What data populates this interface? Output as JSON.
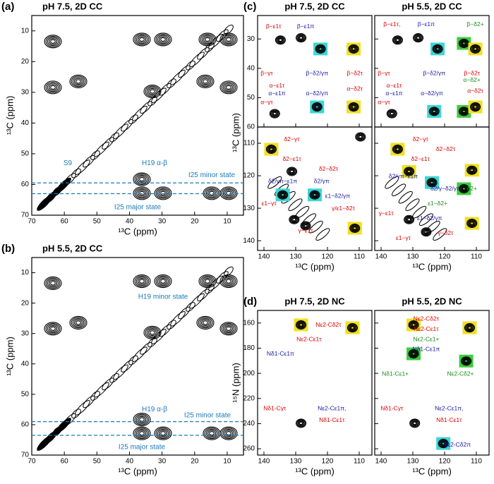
{
  "chart_data": [
    {
      "type": "contour",
      "panel": "(a)",
      "title": "pH 7.5, 2D CC",
      "xlabel": "¹³C (ppm)",
      "ylabel": "¹³C (ppm)",
      "xlim": [
        70,
        5
      ],
      "ylim": [
        70,
        5
      ],
      "xticks": [
        70,
        60,
        50,
        40,
        30,
        20,
        10
      ],
      "yticks": [
        10,
        20,
        30,
        40,
        50,
        60,
        70
      ],
      "xtick_labels": true,
      "ytick_labels": true,
      "hlines": [
        59.5,
        63
      ],
      "hline_color": "#1a7ab8",
      "annotations": [
        {
          "text": "S9",
          "color": "#1a7ab8"
        },
        {
          "text": "H19 α-β",
          "color": "#1a7ab8"
        },
        {
          "text": "I25 minor state",
          "color": "#1a7ab8"
        },
        {
          "text": "I25 major state",
          "color": "#1a7ab8"
        }
      ]
    },
    {
      "type": "contour",
      "panel": "(b)",
      "title": "pH 5.5, 2D CC",
      "xlabel": "¹³C (ppm)",
      "ylabel": "¹³C (ppm)",
      "xlim": [
        70,
        5
      ],
      "ylim": [
        70,
        5
      ],
      "xticks": [
        70,
        60,
        50,
        40,
        30,
        20,
        10
      ],
      "yticks": [
        10,
        20,
        30,
        40,
        50,
        60,
        70
      ],
      "xtick_labels": true,
      "ytick_labels": true,
      "hlines": [
        59,
        63.5
      ],
      "hline_color": "#1a7ab8",
      "annotations": [
        {
          "text": "H19 minor state",
          "color": "#1a7ab8"
        },
        {
          "text": "H19 α-β",
          "color": "#1a7ab8"
        },
        {
          "text": "I25 minor state",
          "color": "#1a7ab8"
        },
        {
          "text": "I25 major state",
          "color": "#1a7ab8"
        }
      ]
    },
    {
      "type": "contour",
      "panel": "(c)",
      "title": "pH 7.5, 2D CC",
      "ylabel": "¹³C (ppm)",
      "xlim": [
        142,
        106
      ],
      "ylim": [
        60,
        22
      ],
      "xticks": [
        140,
        130,
        120,
        110
      ],
      "yticks": [
        30,
        40,
        50,
        60
      ],
      "xtick_labels": false,
      "ytick_labels": true,
      "annotations": [
        {
          "text": "β−ε1τ",
          "color": "#d00"
        },
        {
          "text": "β−ε1π",
          "color": "#1a1aa0"
        },
        {
          "text": "β−γτ",
          "color": "#d00"
        },
        {
          "text": "β−δ2/γπ",
          "color": "#1a1aa0"
        },
        {
          "text": "β−δ2τ",
          "color": "#d00"
        },
        {
          "text": "α−ε1τ",
          "color": "#d00"
        },
        {
          "text": "α−ε1π",
          "color": "#1a1aa0"
        },
        {
          "text": "α−γτ",
          "color": "#d00"
        },
        {
          "text": "α−δ2/γπ",
          "color": "#1a1aa0"
        },
        {
          "text": "α−δ2τ",
          "color": "#d00"
        }
      ]
    },
    {
      "type": "contour",
      "title": "pH 5.5, 2D CC",
      "xlim": [
        142,
        106
      ],
      "ylim": [
        60,
        22
      ],
      "xticks": [
        140,
        130,
        120,
        110
      ],
      "yticks": [
        30,
        40,
        50,
        60
      ],
      "xtick_labels": false,
      "ytick_labels": false,
      "annotations": [
        {
          "text": "β−ε1τ,",
          "color": "#d00"
        },
        {
          "text": "β−ε1π",
          "color": "#1a1aa0"
        },
        {
          "text": "β−δ2+",
          "color": "#1a8a1a"
        },
        {
          "text": "β−γτ",
          "color": "#d00"
        },
        {
          "text": "β−δ2/γπ",
          "color": "#1a1aa0"
        },
        {
          "text": "β−δ2τ",
          "color": "#d00"
        },
        {
          "text": "α−ε1τ",
          "color": "#d00"
        },
        {
          "text": "α−ε1π",
          "color": "#1a1aa0"
        },
        {
          "text": "α−δ2+",
          "color": "#1a8a1a"
        },
        {
          "text": "α−γτ",
          "color": "#d00"
        },
        {
          "text": "α−δ2/γπ",
          "color": "#1a1aa0"
        },
        {
          "text": "α−δ2τ",
          "color": "#d00"
        }
      ]
    },
    {
      "type": "contour",
      "xlabel": "¹³C (ppm)",
      "xlim": [
        142,
        106
      ],
      "ylim": [
        143,
        105
      ],
      "xticks": [
        140,
        130,
        120,
        110
      ],
      "yticks": [
        110,
        120,
        130,
        140
      ],
      "xtick_labels": true,
      "ytick_labels": true,
      "annotations": [
        {
          "text": "δ2−γτ",
          "color": "#d00"
        },
        {
          "text": "δ2−δ2τ",
          "color": "#d00"
        },
        {
          "text": "δ2−ε1τ",
          "color": "#d00"
        },
        {
          "text": "δ2/γπ−ε1π",
          "color": "#1a1aa0"
        },
        {
          "text": "δ2/γπ",
          "color": "#1a1aa0"
        },
        {
          "text": "ε1−δ2/γπ",
          "color": "#1a1aa0"
        },
        {
          "text": "ε1−γτ",
          "color": "#d00"
        },
        {
          "text": "γ/ε1−δ2τ",
          "color": "#d00"
        },
        {
          "text": "γ−ε1τ",
          "color": "#d00"
        }
      ]
    },
    {
      "type": "contour",
      "xlabel": "¹³C (ppm)",
      "xlim": [
        142,
        106
      ],
      "ylim": [
        143,
        105
      ],
      "xticks": [
        140,
        130,
        120,
        110
      ],
      "yticks": [
        110,
        120,
        130,
        140
      ],
      "xtick_labels": true,
      "ytick_labels": false,
      "annotations": [
        {
          "text": "δ2−γτ",
          "color": "#d00"
        },
        {
          "text": "δ2−δ2τ",
          "color": "#d00"
        },
        {
          "text": "δ2−ε1τ",
          "color": "#d00"
        },
        {
          "text": "δ2/γπ−ε1π",
          "color": "#1a1aa0"
        },
        {
          "text": "δ2/γ−δ2/γπ",
          "color": "#1a1aa0"
        },
        {
          "text": "ε1−δ2+",
          "color": "#1a8a1a"
        },
        {
          "text": "δ2+",
          "color": "#1a8a1a"
        },
        {
          "text": "ε1−δ2/γπ",
          "color": "#1a1aa0"
        },
        {
          "text": "γ−ε1τ",
          "color": "#d00"
        },
        {
          "text": "ε1−γτ",
          "color": "#d00"
        },
        {
          "text": "γ−δ2τ",
          "color": "#d00"
        }
      ]
    },
    {
      "type": "contour",
      "panel": "(d)",
      "title": "pH 7.5, 2D NC",
      "xlabel": "¹³C (ppm)",
      "ylabel": "¹⁵N (ppm)",
      "xlim": [
        142,
        106
      ],
      "ylim": [
        265,
        150
      ],
      "xticks": [
        140,
        130,
        120,
        110
      ],
      "yticks": [
        160,
        180,
        200,
        220,
        240,
        260
      ],
      "xtick_labels": true,
      "ytick_labels": true,
      "annotations": [
        {
          "text": "Nε2-Cδ2τ",
          "color": "#d00"
        },
        {
          "text": "Nε2-Cε1τ",
          "color": "#d00"
        },
        {
          "text": "Nδ1-Cε1π",
          "color": "#1a1aa0"
        },
        {
          "text": "Nδ1-Cγτ",
          "color": "#d00"
        },
        {
          "text": "Nε2-Cε1π,",
          "color": "#1a1aa0"
        },
        {
          "text": "Nδ1-Cε1τ",
          "color": "#d00"
        }
      ]
    },
    {
      "type": "contour",
      "title": "pH 5.5, 2D NC",
      "xlabel": "¹³C (ppm)",
      "xlim": [
        142,
        106
      ],
      "ylim": [
        265,
        150
      ],
      "xticks": [
        140,
        130,
        120,
        110
      ],
      "yticks": [
        160,
        180,
        200,
        220,
        240,
        260
      ],
      "xtick_labels": true,
      "ytick_labels": false,
      "annotations": [
        {
          "text": "Nε2-Cδ2τ",
          "color": "#d00"
        },
        {
          "text": "Nε2-Cε1τ",
          "color": "#d00"
        },
        {
          "text": "Nε2-Cε1+",
          "color": "#1a8a1a"
        },
        {
          "text": "Nδ1-Cε1π",
          "color": "#1a1aa0"
        },
        {
          "text": "Nδ1-Cε1+",
          "color": "#1a8a1a"
        },
        {
          "text": "Nε2-Cδ2+",
          "color": "#1a8a1a"
        },
        {
          "text": "Nδ1-Cγτ",
          "color": "#d00"
        },
        {
          "text": "Nε2-Cε1π,",
          "color": "#1a1aa0"
        },
        {
          "text": "Nδ1-Cε1τ",
          "color": "#d00"
        },
        {
          "text": "Nε2-Cδ2π",
          "color": "#1a1aa0"
        }
      ]
    }
  ]
}
